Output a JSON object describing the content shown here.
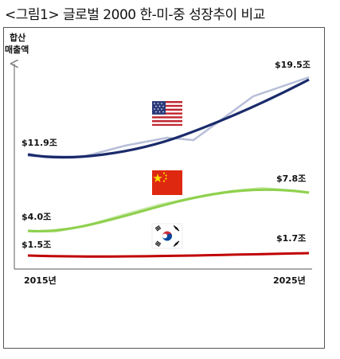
{
  "caption": "<그림1> 글로벌 2000 한-미-중 성장추이 비교",
  "chart_data": {
    "type": "line",
    "ylabel": "합산 매출액",
    "ylabel_lines": [
      "합산",
      "매출액"
    ],
    "x": [
      "2015년",
      "2025년"
    ],
    "series": [
      {
        "name": "미국",
        "start_label": "$11.9조",
        "end_label": "$19.5조",
        "start": 11.9,
        "end": 19.5,
        "color": "#1a2b6b",
        "raw_color": "#b7bed8",
        "flag": "us-flag-icon"
      },
      {
        "name": "중국",
        "start_label": "$4.0조",
        "end_label": "$7.8조",
        "start": 4.0,
        "end": 7.8,
        "color": "#8fd14f",
        "raw_color": "#d3edb8",
        "flag": "cn-flag-icon"
      },
      {
        "name": "한국",
        "start_label": "$1.5조",
        "end_label": "$1.7조",
        "start": 1.5,
        "end": 1.7,
        "color": "#c00000",
        "raw_color": "#e8a0a0",
        "flag": "kr-flag-icon"
      }
    ]
  }
}
